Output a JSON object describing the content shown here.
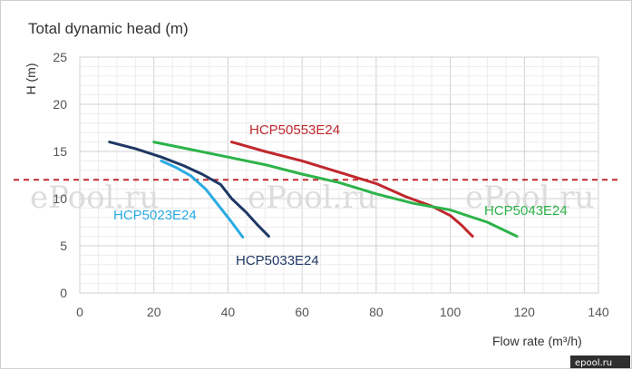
{
  "chart_data": {
    "type": "line",
    "title": "Total dynamic head (m)",
    "ylabel": "H (m)",
    "xlabel": "Flow rate (m³/h)",
    "xlim": [
      0,
      140
    ],
    "ylim": [
      0,
      25
    ],
    "xticks": [
      0,
      20,
      40,
      60,
      80,
      100,
      120,
      140
    ],
    "yticks": [
      0,
      5,
      10,
      15,
      20,
      25
    ],
    "grid": true,
    "reference_line": {
      "y": 12,
      "style": "dashed",
      "color": "#c0282d"
    },
    "series": [
      {
        "name": "HCP5023E24",
        "color": "#29abe2",
        "points": [
          [
            22,
            14
          ],
          [
            26,
            13.3
          ],
          [
            30,
            12.4
          ],
          [
            34,
            11
          ],
          [
            38,
            9
          ],
          [
            41,
            7.5
          ],
          [
            44,
            5.9
          ]
        ]
      },
      {
        "name": "HCP5033E24",
        "color": "#1f3864",
        "points": [
          [
            8,
            16
          ],
          [
            15,
            15.3
          ],
          [
            22,
            14.4
          ],
          [
            28,
            13.5
          ],
          [
            33,
            12.6
          ],
          [
            38,
            11.5
          ],
          [
            41,
            10
          ],
          [
            45,
            8.5
          ],
          [
            48,
            7.2
          ],
          [
            51,
            6
          ]
        ]
      },
      {
        "name": "HCP50553E24",
        "color": "#c0282d",
        "points": [
          [
            41,
            16
          ],
          [
            50,
            15
          ],
          [
            60,
            14
          ],
          [
            70,
            12.8
          ],
          [
            80,
            11.6
          ],
          [
            88,
            10.2
          ],
          [
            95,
            9.2
          ],
          [
            100,
            8.2
          ],
          [
            103,
            7.2
          ],
          [
            106,
            6
          ]
        ]
      },
      {
        "name": "HCP5043E24",
        "color": "#2db34a",
        "points": [
          [
            20,
            16
          ],
          [
            30,
            15.2
          ],
          [
            40,
            14.4
          ],
          [
            50,
            13.6
          ],
          [
            60,
            12.6
          ],
          [
            70,
            11.7
          ],
          [
            80,
            10.5
          ],
          [
            90,
            9.5
          ],
          [
            100,
            8.8
          ],
          [
            110,
            7.5
          ],
          [
            118,
            6
          ]
        ]
      }
    ]
  },
  "watermark": "ePool.ru",
  "corner_logo": "epool.ru"
}
